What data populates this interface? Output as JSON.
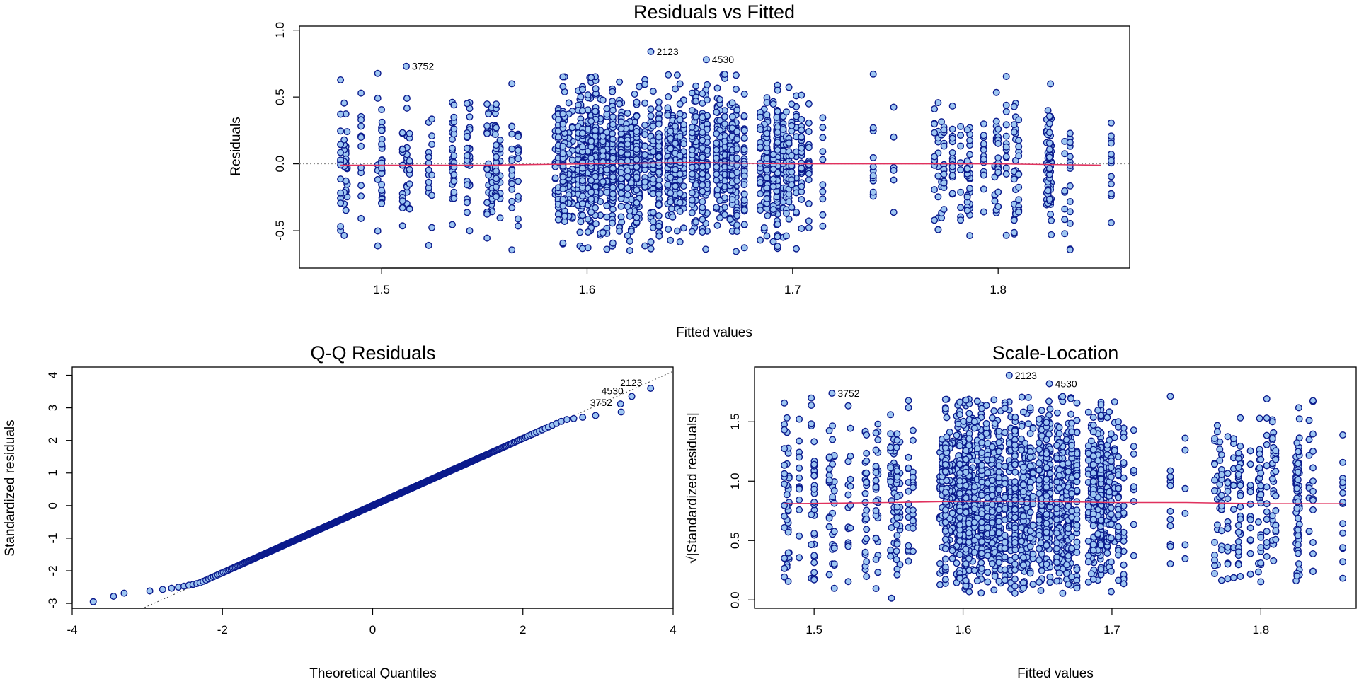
{
  "colors": {
    "point_fill": "#9dc6f2",
    "point_stroke": "#0b1a8c",
    "smoother": "#e0315e",
    "reference": "#808080",
    "frame": "#000000"
  },
  "chart_data": [
    {
      "id": "residuals-vs-fitted",
      "type": "scatter",
      "title": "Residuals vs Fitted",
      "xlabel": "Fitted values",
      "ylabel": "Residuals",
      "xlim": [
        1.46,
        1.864
      ],
      "ylim": [
        -0.78,
        1.03
      ],
      "xticks": [
        1.5,
        1.6,
        1.7,
        1.8
      ],
      "xtick_labels": [
        "1.5",
        "1.6",
        "1.7",
        "1.8"
      ],
      "yticks": [
        -0.5,
        0.0,
        0.5,
        1.0
      ],
      "ytick_labels": [
        "-0.5",
        "0.0",
        "0.5",
        "1.0"
      ],
      "reference_line": {
        "y": 0,
        "style": "dotted"
      },
      "smoother": {
        "x": [
          1.48,
          1.55,
          1.6,
          1.65,
          1.7,
          1.75,
          1.8,
          1.85
        ],
        "y": [
          -0.01,
          -0.01,
          0.0,
          0.01,
          0.0,
          0.0,
          0.0,
          -0.01
        ]
      },
      "labeled_points": [
        {
          "label": "3752",
          "x": 1.512,
          "y": 0.73
        },
        {
          "label": "2123",
          "x": 1.631,
          "y": 0.84
        },
        {
          "label": "4530",
          "x": 1.658,
          "y": 0.78
        }
      ]
    },
    {
      "id": "qq-residuals",
      "type": "scatter",
      "title": "Q-Q Residuals",
      "xlabel": "Theoretical Quantiles",
      "ylabel": "Standardized residuals",
      "xlim": [
        -4.0,
        4.0
      ],
      "ylim": [
        -3.15,
        4.25
      ],
      "xticks": [
        -4,
        -2,
        0,
        2,
        4
      ],
      "xtick_labels": [
        "-4",
        "-2",
        "0",
        "2",
        "4"
      ],
      "yticks": [
        -3,
        -2,
        -1,
        0,
        1,
        2,
        3,
        4
      ],
      "ytick_labels": [
        "-3",
        "-2",
        "-1",
        "0",
        "1",
        "2",
        "3",
        "4"
      ],
      "reference_line": {
        "slope": 1.03,
        "intercept": 0.0,
        "style": "dotted"
      },
      "labeled_points": [
        {
          "label": "2123",
          "x": 3.7,
          "y": 3.6
        },
        {
          "label": "4530",
          "x": 3.45,
          "y": 3.35
        },
        {
          "label": "3752",
          "x": 3.3,
          "y": 3.12
        }
      ]
    },
    {
      "id": "scale-location",
      "type": "scatter",
      "title": "Scale-Location",
      "xlabel": "Fitted values",
      "ylabel": "√|Standardized residuals|",
      "xlim": [
        1.46,
        1.864
      ],
      "ylim": [
        -0.07,
        1.96
      ],
      "xticks": [
        1.5,
        1.6,
        1.7,
        1.8
      ],
      "xtick_labels": [
        "1.5",
        "1.6",
        "1.7",
        "1.8"
      ],
      "yticks": [
        0.0,
        0.5,
        1.0,
        1.5
      ],
      "ytick_labels": [
        "0.0",
        "0.5",
        "1.0",
        "1.5"
      ],
      "smoother": {
        "x": [
          1.48,
          1.55,
          1.6,
          1.65,
          1.7,
          1.75,
          1.8,
          1.855
        ],
        "y": [
          0.81,
          0.82,
          0.83,
          0.83,
          0.82,
          0.82,
          0.81,
          0.81
        ]
      },
      "labeled_points": [
        {
          "label": "3752",
          "x": 1.512,
          "y": 1.74
        },
        {
          "label": "2123",
          "x": 1.631,
          "y": 1.89
        },
        {
          "label": "4530",
          "x": 1.658,
          "y": 1.82
        }
      ]
    }
  ]
}
